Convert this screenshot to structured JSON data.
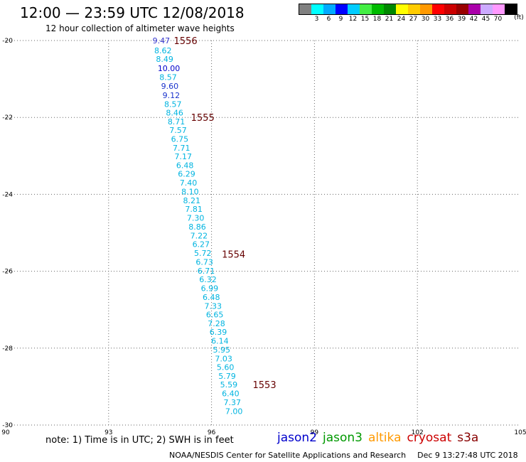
{
  "header": {
    "title": "12:00 — 23:59 UTC 12/08/2018",
    "subtitle": "12 hour collection of altimeter wave heights"
  },
  "legend": {
    "colors": [
      "#808080",
      "#00ffff",
      "#00aaff",
      "#0000ff",
      "#00ccff",
      "#44ee44",
      "#00bb00",
      "#008800",
      "#ffff00",
      "#ffcc00",
      "#ff9900",
      "#ff0000",
      "#cc0000",
      "#990000",
      "#aa00aa",
      "#ccaaff",
      "#ff99ff",
      "#000000"
    ],
    "labels": [
      "3",
      "6",
      "9",
      "12",
      "15",
      "18",
      "21",
      "24",
      "27",
      "30",
      "33",
      "36",
      "39",
      "42",
      "45",
      "70"
    ],
    "unit": "(ft)"
  },
  "chart_data": {
    "type": "scatter",
    "xlim": [
      90,
      105
    ],
    "ylim": [
      -30,
      -20
    ],
    "x_ticks": [
      90,
      93,
      96,
      99,
      102,
      105
    ],
    "x_tick_labels": [
      "90",
      "93",
      "96",
      "99",
      "102",
      "105"
    ],
    "y_ticks": [
      -20,
      -22,
      -24,
      -26,
      -28,
      -30
    ],
    "y_tick_labels": [
      "-20",
      "-22",
      "-24",
      "-26",
      "-28",
      "-30"
    ],
    "grid": true,
    "point_color": "#00b4e0",
    "series": [
      {
        "values": [
          "9.47",
          "8.62",
          "8.49",
          "10.00",
          "8.57",
          "9.60",
          "9.12",
          "8.57",
          "8.46",
          "8.71",
          "7.57",
          "6.75",
          "7.71",
          "7.17",
          "6.48",
          "6.29",
          "7.40",
          "8.10",
          "8.21",
          "7.81",
          "7.30",
          "8.86",
          "7.22",
          "6.27",
          "5.72",
          "6.73",
          "6.71",
          "6.32",
          "6.99",
          "6.48",
          "7.33",
          "6.65",
          "7.28",
          "6.39",
          "6.14",
          "5.95",
          "7.03",
          "5.60",
          "5.79",
          "5.59",
          "6.40",
          "7.37",
          "7.00"
        ],
        "lon": [
          94.28,
          94.33,
          94.38,
          94.43,
          94.48,
          94.53,
          94.57,
          94.62,
          94.67,
          94.72,
          94.77,
          94.82,
          94.87,
          94.92,
          94.97,
          95.02,
          95.07,
          95.12,
          95.17,
          95.23,
          95.28,
          95.33,
          95.38,
          95.44,
          95.49,
          95.54,
          95.59,
          95.64,
          95.69,
          95.74,
          95.79,
          95.84,
          95.89,
          95.94,
          95.99,
          96.04,
          96.1,
          96.15,
          96.2,
          96.25,
          96.3,
          96.35,
          96.4
        ],
        "lat": [
          -20.0,
          -20.26,
          -20.48,
          -20.72,
          -20.95,
          -21.18,
          -21.42,
          -21.65,
          -21.88,
          -22.11,
          -22.33,
          -22.56,
          -22.79,
          -23.01,
          -23.24,
          -23.47,
          -23.7,
          -23.93,
          -24.16,
          -24.38,
          -24.61,
          -24.84,
          -25.07,
          -25.3,
          -25.53,
          -25.76,
          -25.99,
          -26.21,
          -26.44,
          -26.67,
          -26.9,
          -27.13,
          -27.36,
          -27.58,
          -27.81,
          -28.04,
          -28.27,
          -28.49,
          -28.72,
          -28.95,
          -29.18,
          -29.41,
          -29.64
        ],
        "value_colors": [
          "#3333cc",
          "#00b4e0",
          "#00b4e0",
          "#0000cc",
          "#00b4e0",
          "#1a33cc",
          "#1a33cc",
          "#00b4e0",
          "#00b4e0",
          "#00b4e0",
          "#00b4e0",
          "#00b4e0",
          "#00b4e0",
          "#00b4e0",
          "#00b4e0",
          "#00b4e0",
          "#00b4e0",
          "#00b4e0",
          "#00b4e0",
          "#00b4e0",
          "#00b4e0",
          "#00b4e0",
          "#00b4e0",
          "#00b4e0",
          "#00b4e0",
          "#00b4e0",
          "#00b4e0",
          "#00b4e0",
          "#00b4e0",
          "#00b4e0",
          "#00b4e0",
          "#00b4e0",
          "#00b4e0",
          "#00b4e0",
          "#00b4e0",
          "#00b4e0",
          "#00b4e0",
          "#00b4e0",
          "#00b4e0",
          "#00b4e0",
          "#00b4e0",
          "#00b4e0",
          "#00b4e0"
        ]
      }
    ],
    "pass_labels": [
      {
        "text": "1556",
        "lon": 94.9,
        "lat": -20.0
      },
      {
        "text": "1555",
        "lon": 95.4,
        "lat": -22.0
      },
      {
        "text": "1554",
        "lon": 96.3,
        "lat": -25.55
      },
      {
        "text": "1553",
        "lon": 97.2,
        "lat": -28.95
      }
    ],
    "pass_label_color": "#660000"
  },
  "footer": {
    "note": "note: 1) Time is in UTC; 2) SWH is in feet",
    "satellites": [
      {
        "name": "jason2",
        "color": "#0000cc"
      },
      {
        "name": "jason3",
        "color": "#009900"
      },
      {
        "name": "altika",
        "color": "#ff9900"
      },
      {
        "name": "cryosat",
        "color": "#cc0000"
      },
      {
        "name": "s3a",
        "color": "#880000"
      }
    ],
    "credit": "NOAA/NESDIS Center for Satellite Applications and Research",
    "timestamp": "Dec  9 13:27:48 UTC 2018"
  }
}
